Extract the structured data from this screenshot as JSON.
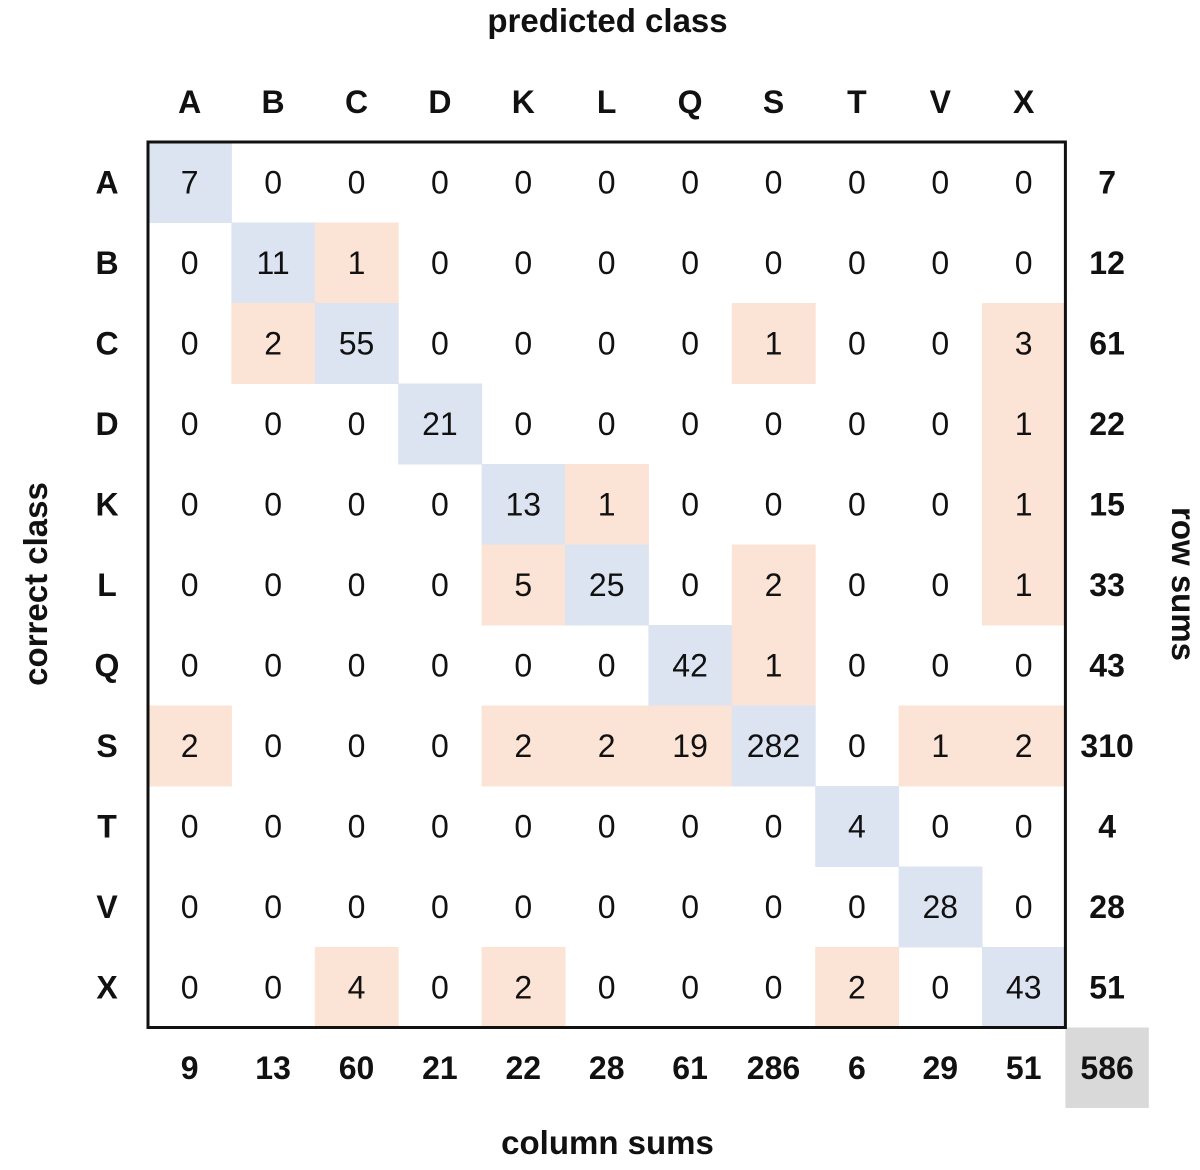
{
  "chart_data": {
    "type": "heatmap",
    "title": "",
    "xlabel": "predicted class",
    "ylabel": "correct class",
    "right_label": "row sums",
    "bottom_label": "column sums",
    "classes": [
      "A",
      "B",
      "C",
      "D",
      "K",
      "L",
      "Q",
      "S",
      "T",
      "V",
      "X"
    ],
    "matrix": [
      [
        7,
        0,
        0,
        0,
        0,
        0,
        0,
        0,
        0,
        0,
        0
      ],
      [
        0,
        11,
        1,
        0,
        0,
        0,
        0,
        0,
        0,
        0,
        0
      ],
      [
        0,
        2,
        55,
        0,
        0,
        0,
        0,
        1,
        0,
        0,
        3
      ],
      [
        0,
        0,
        0,
        21,
        0,
        0,
        0,
        0,
        0,
        0,
        1
      ],
      [
        0,
        0,
        0,
        0,
        13,
        1,
        0,
        0,
        0,
        0,
        1
      ],
      [
        0,
        0,
        0,
        0,
        5,
        25,
        0,
        2,
        0,
        0,
        1
      ],
      [
        0,
        0,
        0,
        0,
        0,
        0,
        42,
        1,
        0,
        0,
        0
      ],
      [
        2,
        0,
        0,
        0,
        2,
        2,
        19,
        282,
        0,
        1,
        2
      ],
      [
        0,
        0,
        0,
        0,
        0,
        0,
        0,
        0,
        4,
        0,
        0
      ],
      [
        0,
        0,
        0,
        0,
        0,
        0,
        0,
        0,
        0,
        28,
        0
      ],
      [
        0,
        0,
        4,
        0,
        2,
        0,
        0,
        0,
        2,
        0,
        43
      ]
    ],
    "row_sums": [
      7,
      12,
      61,
      22,
      15,
      33,
      43,
      310,
      4,
      28,
      51
    ],
    "column_sums": [
      9,
      13,
      60,
      21,
      22,
      28,
      61,
      286,
      6,
      29,
      51
    ],
    "total": 586,
    "colors": {
      "diagonal": "#dce3f1",
      "off_diagonal_nonzero": "#fbe3d6",
      "total_background": "#d9d9d9",
      "text": "#111111"
    }
  }
}
